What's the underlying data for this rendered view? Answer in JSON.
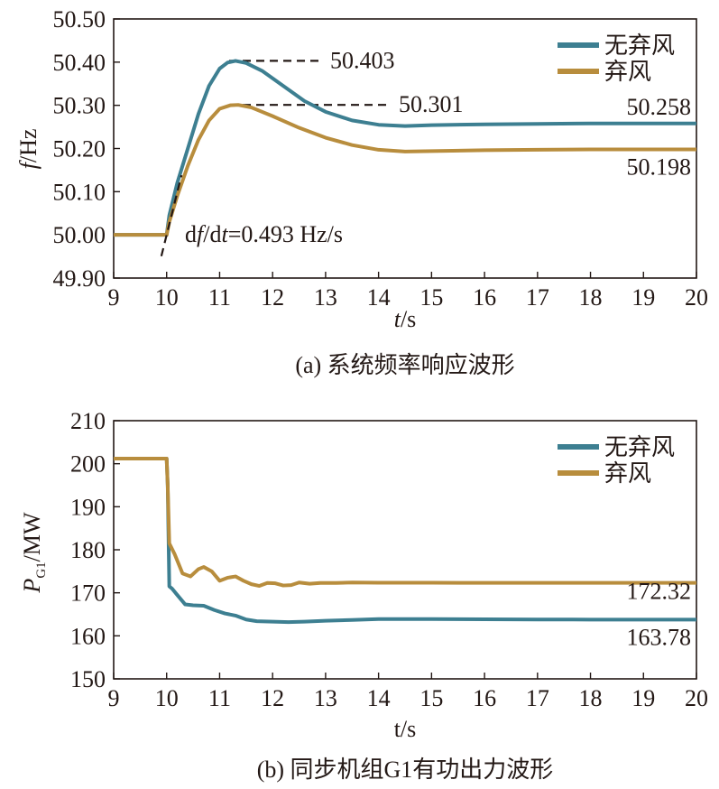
{
  "colors": {
    "no_curtail": "#3d7f91",
    "curtail": "#b88d3d",
    "ink": "#231815"
  },
  "chart_data": [
    {
      "type": "line",
      "caption": "(a) 系统频率响应波形",
      "xlabel": {
        "italic": "t",
        "rest": "/s"
      },
      "ylabel": {
        "italic": "f",
        "rest": "/Hz"
      },
      "xlim": [
        9,
        20
      ],
      "ylim": [
        49.9,
        50.5
      ],
      "xticks": [
        9,
        10,
        11,
        12,
        13,
        14,
        15,
        16,
        17,
        18,
        19,
        20
      ],
      "yticks": [
        "49.90",
        "50.00",
        "50.10",
        "50.20",
        "50.30",
        "50.40",
        "50.50"
      ],
      "legend_position": "top-right",
      "series": [
        {
          "name": "无弃风",
          "color": "no_curtail",
          "x": [
            9,
            10,
            10.05,
            10.2,
            10.4,
            10.6,
            10.8,
            11.0,
            11.15,
            11.3,
            11.5,
            11.8,
            12.2,
            12.6,
            13.0,
            13.5,
            14.0,
            14.5,
            15.0,
            16.0,
            17.0,
            18.0,
            19.0,
            20.0
          ],
          "y": [
            50.0,
            50.0,
            50.045,
            50.12,
            50.2,
            50.28,
            50.345,
            50.385,
            50.399,
            50.403,
            50.398,
            50.38,
            50.345,
            50.31,
            50.285,
            50.265,
            50.255,
            50.252,
            50.254,
            50.256,
            50.257,
            50.258,
            50.258,
            50.258
          ]
        },
        {
          "name": "弃风",
          "color": "curtail",
          "x": [
            9,
            10,
            10.05,
            10.2,
            10.4,
            10.6,
            10.8,
            11.0,
            11.2,
            11.35,
            11.6,
            12.0,
            12.5,
            13.0,
            13.5,
            14.0,
            14.5,
            15.0,
            16.0,
            17.0,
            18.0,
            19.0,
            20.0
          ],
          "y": [
            50.0,
            50.0,
            50.03,
            50.09,
            50.16,
            50.22,
            50.265,
            50.292,
            50.3,
            50.301,
            50.295,
            50.275,
            50.248,
            50.225,
            50.208,
            50.197,
            50.193,
            50.194,
            50.196,
            50.197,
            50.198,
            50.198,
            50.198
          ]
        }
      ],
      "annotations": [
        {
          "text": "50.403",
          "x": 11.35,
          "y": 50.403,
          "kind": "peak"
        },
        {
          "text": "50.301",
          "x": 11.35,
          "y": 50.301,
          "kind": "peak"
        },
        {
          "text": "50.258",
          "x": 20,
          "y": 50.258,
          "kind": "final"
        },
        {
          "text": "50.198",
          "x": 20,
          "y": 50.198,
          "kind": "final"
        }
      ],
      "rocof": {
        "d": "d",
        "f": "f",
        "slash": "/d",
        "t": "t",
        "value": "=0.493 Hz/s",
        "slope_hz_per_s": 0.493
      }
    },
    {
      "type": "line",
      "caption": "(b) 同步机组G1有功出力波形",
      "xlabel": {
        "italic": "",
        "rest": "t/s"
      },
      "ylabel": {
        "main": "P",
        "sub": "G1",
        "rest": "/MW"
      },
      "xlim": [
        9,
        20
      ],
      "ylim": [
        150,
        210
      ],
      "xticks": [
        9,
        10,
        11,
        12,
        13,
        14,
        15,
        16,
        17,
        18,
        19,
        20
      ],
      "yticks": [
        "150",
        "160",
        "170",
        "180",
        "190",
        "200",
        "210"
      ],
      "legend_position": "top-right",
      "series": [
        {
          "name": "无弃风",
          "color": "no_curtail",
          "x": [
            9,
            10,
            10.02,
            10.05,
            10.1,
            10.2,
            10.35,
            10.5,
            10.7,
            10.9,
            11.1,
            11.3,
            11.5,
            11.7,
            12.0,
            12.3,
            12.6,
            13.0,
            13.5,
            14.0,
            15.0,
            16.0,
            17.0,
            18.0,
            19.0,
            20.0
          ],
          "y": [
            201.2,
            201.2,
            195,
            171.5,
            171.0,
            169.5,
            167.3,
            167.1,
            167.0,
            166.0,
            165.2,
            164.7,
            163.8,
            163.4,
            163.3,
            163.2,
            163.3,
            163.5,
            163.7,
            163.9,
            163.9,
            163.85,
            163.8,
            163.78,
            163.78,
            163.78
          ]
        },
        {
          "name": "弃风",
          "color": "curtail",
          "x": [
            9,
            10,
            10.02,
            10.05,
            10.15,
            10.3,
            10.45,
            10.6,
            10.7,
            10.85,
            11.0,
            11.15,
            11.3,
            11.45,
            11.6,
            11.75,
            11.9,
            12.05,
            12.2,
            12.35,
            12.5,
            12.7,
            12.9,
            13.2,
            13.5,
            14.0,
            15.0,
            16.0,
            17.0,
            18.0,
            19.0,
            20.0
          ],
          "y": [
            201.2,
            201.2,
            195,
            181.5,
            179.0,
            174.5,
            173.8,
            175.5,
            176.0,
            175.0,
            172.8,
            173.5,
            173.8,
            172.8,
            172.0,
            171.6,
            172.3,
            172.2,
            171.7,
            171.8,
            172.4,
            172.1,
            172.3,
            172.3,
            172.4,
            172.35,
            172.33,
            172.32,
            172.32,
            172.32,
            172.32,
            172.32
          ]
        }
      ],
      "annotations": [
        {
          "text": "172.32",
          "x": 20,
          "y": 172.32,
          "kind": "final"
        },
        {
          "text": "163.78",
          "x": 20,
          "y": 163.78,
          "kind": "final"
        }
      ]
    }
  ]
}
